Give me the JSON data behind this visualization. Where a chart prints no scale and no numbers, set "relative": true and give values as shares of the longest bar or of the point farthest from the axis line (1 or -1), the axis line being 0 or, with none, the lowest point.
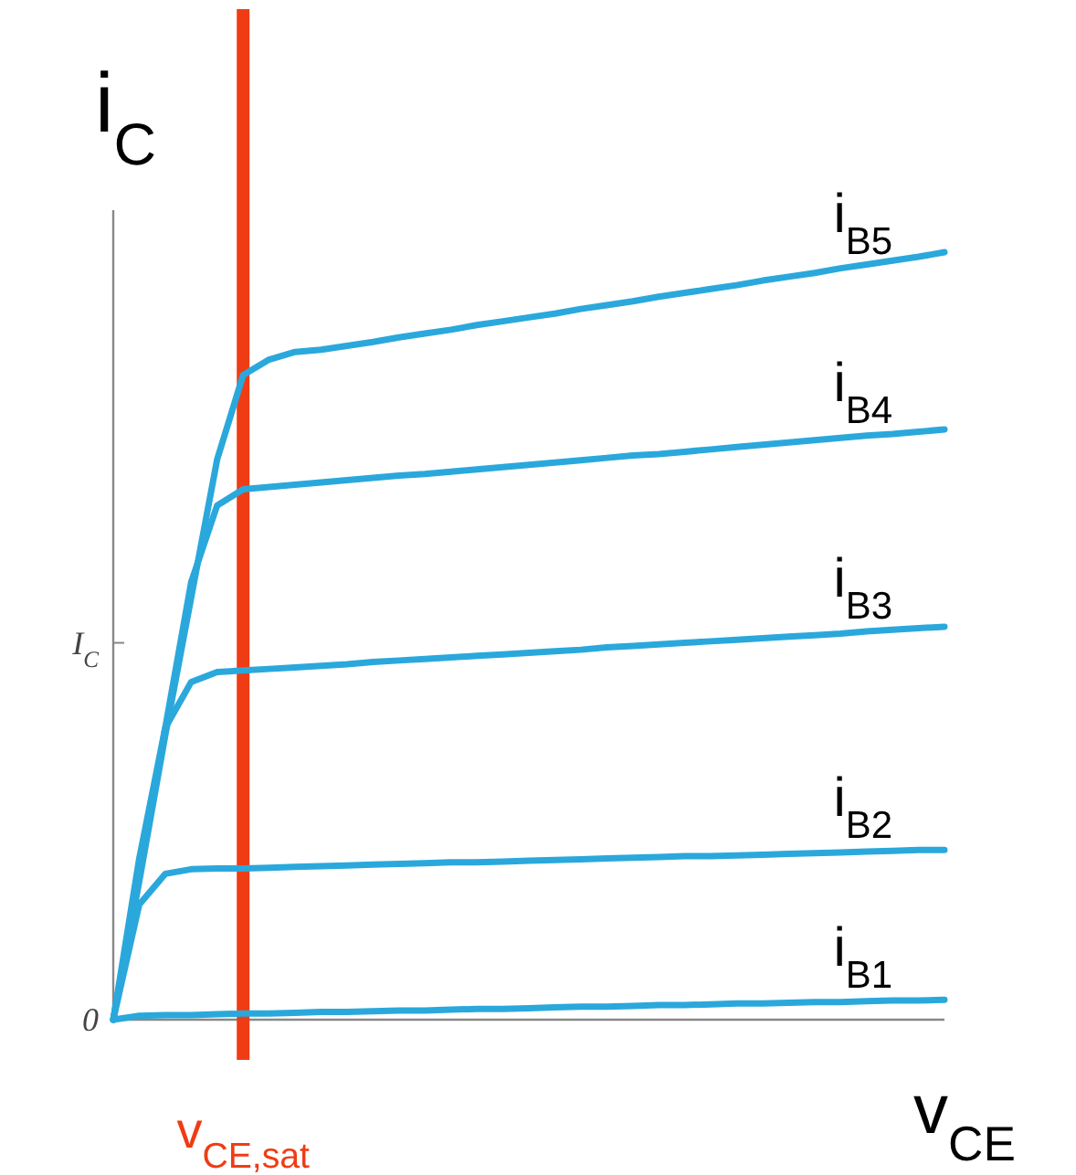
{
  "chart_data": {
    "type": "line",
    "relative": true,
    "ylabel": "i$_{C}$",
    "xlabel": "v$_{CE}$",
    "tick_labels": "y",
    "categories": [
      null,
      null,
      null,
      null,
      null,
      null,
      null,
      null,
      null,
      null,
      null,
      null,
      null,
      null,
      null,
      null,
      null,
      null,
      null,
      null,
      null,
      null,
      null,
      null,
      null,
      null,
      null,
      null,
      null,
      null,
      null,
      null,
      null
    ],
    "annotations": [
      "0",
      "I$_{C}$",
      "v$_{CE,sat}$"
    ],
    "series": [
      {
        "name": "i$_{B5}$",
        "color": "#2aa8dc",
        "values": [
          0,
          0.18,
          0.37,
          0.55,
          0.73,
          0.84,
          0.86,
          0.87,
          0.873,
          0.878,
          0.883,
          0.889,
          0.894,
          0.899,
          0.905,
          0.91,
          0.915,
          0.92,
          0.926,
          0.931,
          0.936,
          0.942,
          0.947,
          0.952,
          0.957,
          0.963,
          0.968,
          0.973,
          0.979,
          0.984,
          0.989,
          0.994,
          1.0
        ]
      },
      {
        "name": "i$_{B4}$",
        "color": "#2aa8dc",
        "values": [
          0,
          0.19,
          0.38,
          0.57,
          0.67,
          0.691,
          0.694,
          0.697,
          0.7,
          0.703,
          0.706,
          0.709,
          0.711,
          0.714,
          0.717,
          0.72,
          0.723,
          0.726,
          0.729,
          0.732,
          0.735,
          0.737,
          0.74,
          0.743,
          0.746,
          0.749,
          0.752,
          0.755,
          0.758,
          0.761,
          0.763,
          0.766,
          0.769
        ]
      },
      {
        "name": "i$_{B3}$",
        "color": "#2aa8dc",
        "values": [
          0,
          0.21,
          0.38,
          0.44,
          0.453,
          0.455,
          0.457,
          0.459,
          0.461,
          0.463,
          0.466,
          0.468,
          0.47,
          0.472,
          0.474,
          0.476,
          0.478,
          0.48,
          0.482,
          0.485,
          0.487,
          0.489,
          0.491,
          0.493,
          0.495,
          0.497,
          0.499,
          0.501,
          0.503,
          0.506,
          0.508,
          0.51,
          0.512
        ]
      },
      {
        "name": "i$_{B2}$",
        "color": "#2aa8dc",
        "values": [
          0,
          0.15,
          0.19,
          0.196,
          0.197,
          0.197,
          0.198,
          0.199,
          0.2,
          0.201,
          0.202,
          0.203,
          0.204,
          0.205,
          0.205,
          0.206,
          0.207,
          0.208,
          0.209,
          0.21,
          0.211,
          0.212,
          0.213,
          0.213,
          0.214,
          0.215,
          0.216,
          0.217,
          0.218,
          0.219,
          0.22,
          0.221,
          0.221
        ]
      },
      {
        "name": "i$_{B1}$",
        "color": "#2aa8dc",
        "values": [
          0,
          0.005,
          0.006,
          0.006,
          0.007,
          0.008,
          0.008,
          0.009,
          0.01,
          0.01,
          0.011,
          0.012,
          0.012,
          0.013,
          0.014,
          0.014,
          0.015,
          0.016,
          0.017,
          0.017,
          0.018,
          0.019,
          0.019,
          0.02,
          0.021,
          0.021,
          0.022,
          0.023,
          0.023,
          0.024,
          0.025,
          0.025,
          0.026
        ]
      }
    ]
  }
}
